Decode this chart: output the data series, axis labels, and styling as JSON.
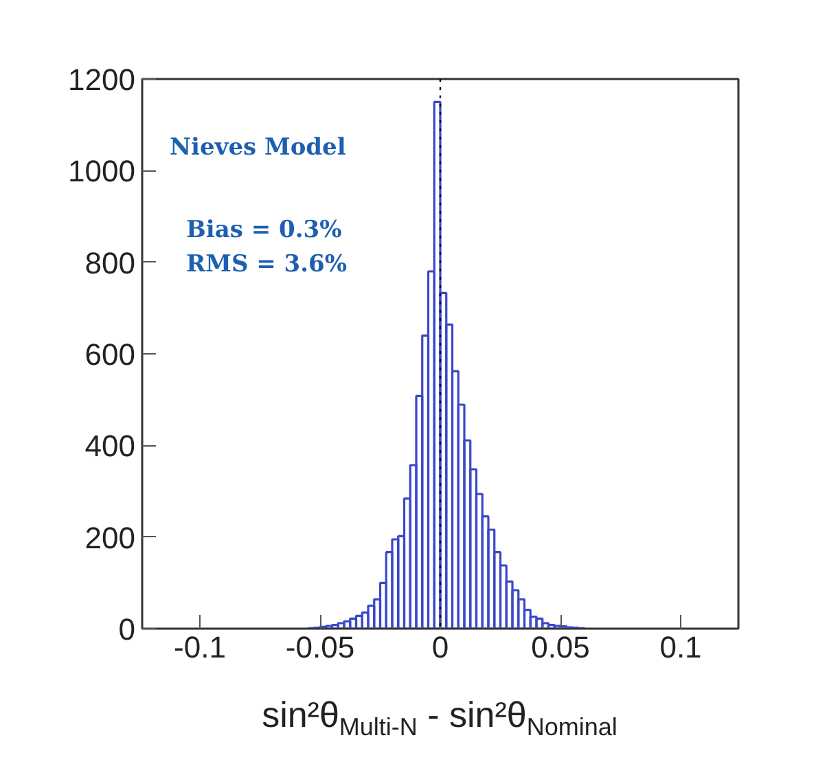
{
  "chart_data": {
    "type": "histogram",
    "bins": [
      -0.055,
      -0.0525,
      -0.05,
      -0.0475,
      -0.045,
      -0.0425,
      -0.04,
      -0.0375,
      -0.035,
      -0.0325,
      -0.03,
      -0.0275,
      -0.025,
      -0.0225,
      -0.02,
      -0.0175,
      -0.015,
      -0.0125,
      -0.01,
      -0.0075,
      -0.005,
      -0.0025,
      0,
      0.0025,
      0.005,
      0.0075,
      0.01,
      0.0125,
      0.015,
      0.0175,
      0.02,
      0.0225,
      0.025,
      0.0275,
      0.03,
      0.0325,
      0.035,
      0.0375,
      0.04,
      0.0425,
      0.045,
      0.0475,
      0.05,
      0.0525,
      0.055,
      0.0575,
      0.06
    ],
    "values": [
      1,
      2,
      4,
      6,
      8,
      12,
      16,
      22,
      28,
      35,
      50,
      64,
      100,
      167,
      195,
      202,
      284,
      357,
      508,
      640,
      780,
      1150,
      733,
      664,
      562,
      489,
      411,
      348,
      294,
      245,
      216,
      167,
      138,
      103,
      84,
      64,
      41,
      26,
      22,
      12,
      8,
      6,
      5,
      3,
      2,
      1
    ],
    "color": "#3a48c8",
    "xlabel": "sin²θ$_{Multi-N}$ - sin²θ$_{Nominal}$",
    "xlim": [
      -0.124,
      0.124
    ],
    "xticks": [
      -0.1,
      -0.05,
      0,
      0.05,
      0.1
    ],
    "ylim": [
      0,
      1200
    ],
    "yticks": [
      0,
      200,
      400,
      600,
      800,
      1000,
      1200
    ],
    "grid": false,
    "ref_lines": [
      {
        "axis": "x",
        "value": 0,
        "color": "#000000",
        "line_style": "dotted"
      }
    ],
    "annotations": [
      "Nieves Model",
      "Bias = 0.3%",
      "RMS = 3.6%"
    ]
  }
}
